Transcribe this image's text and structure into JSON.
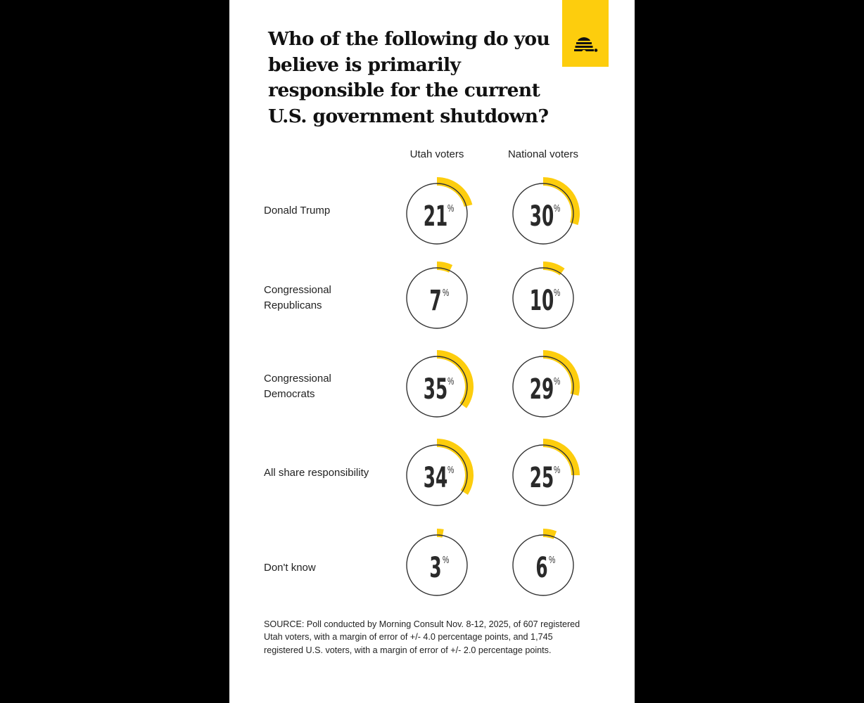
{
  "title": "Who of the following do you believe is primarily responsible for the current U.S. government shutdown?",
  "logo": {
    "icon": "beehive-icon",
    "bg_color": "#fdcd0d"
  },
  "columns": [
    "Utah voters",
    "National voters"
  ],
  "rows": [
    {
      "label": "Donald Trump",
      "utah": 21,
      "national": 30
    },
    {
      "label": "Congressional Republicans",
      "utah": 7,
      "national": 10
    },
    {
      "label": "Congressional Democrats",
      "utah": 35,
      "national": 29
    },
    {
      "label": "All share responsibility",
      "utah": 34,
      "national": 25
    },
    {
      "label": "Don't know",
      "utah": 3,
      "national": 6
    }
  ],
  "source": "SOURCE: Poll conducted by Morning Consult Nov. 8-12, 2025, of 607 registered Utah voters, with a margin of error of +/- 4.0 percentage points, and 1,745 registered U.S. voters, with a margin of error of +/- 2.0 percentage points.",
  "colors": {
    "accent": "#fdcd0d",
    "circle": "#333333",
    "text": "#222222"
  },
  "chart_data": {
    "type": "pie",
    "subtype": "radial-progress",
    "title": "Who of the following do you believe is primarily responsible for the current U.S. government shutdown?",
    "categories": [
      "Donald Trump",
      "Congressional Republicans",
      "Congressional Democrats",
      "All share responsibility",
      "Don't know"
    ],
    "series": [
      {
        "name": "Utah voters",
        "values": [
          21,
          7,
          35,
          34,
          3
        ]
      },
      {
        "name": "National voters",
        "values": [
          30,
          10,
          29,
          25,
          6
        ]
      }
    ],
    "unit": "%",
    "legend": "column headers",
    "annotations": [
      "SOURCE: Poll conducted by Morning Consult Nov. 8-12, 2025, of 607 registered Utah voters, with a margin of error of +/- 4.0 percentage points, and 1,745 registered U.S. voters, with a margin of error of +/- 2.0 percentage points."
    ]
  }
}
